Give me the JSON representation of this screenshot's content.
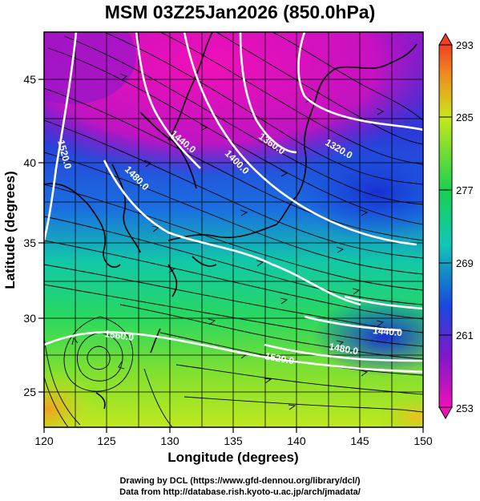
{
  "title": "MSM 03Z25Jan2026 (850.0hPa)",
  "axes": {
    "xlabel": "Longitude (degrees)",
    "ylabel": "Latitude  (degrees)",
    "x_ticks": [
      "120",
      "125",
      "130",
      "135",
      "140",
      "145",
      "150"
    ],
    "y_ticks": [
      "25",
      "30",
      "35",
      "40",
      "45"
    ]
  },
  "colorbar": {
    "tick_labels": [
      "293",
      "285",
      "277",
      "269",
      "261",
      "253"
    ]
  },
  "contours": [
    {
      "label": "1520.0"
    },
    {
      "label": "1440.0"
    },
    {
      "label": "1480.0"
    },
    {
      "label": "1400.0"
    },
    {
      "label": "1360.0"
    },
    {
      "label": "1320.0"
    },
    {
      "label": "1560.0"
    },
    {
      "label": "1520.0"
    },
    {
      "label": "1480.0"
    },
    {
      "label": "1440.0"
    }
  ],
  "credits": {
    "line1": "Drawing by DCL (https://www.gfd-dennou.org/library/dcl/)",
    "line2": "Data from http://database.rish.kyoto-u.ac.jp/arch/jmadata/"
  },
  "colors": {
    "warm": "#f08a20",
    "yellow_green": "#c8e818",
    "green": "#18d050",
    "cyan": "#10c8b4",
    "blue": "#1848e0",
    "purple": "#8018c8",
    "magenta": "#f010b8"
  }
}
